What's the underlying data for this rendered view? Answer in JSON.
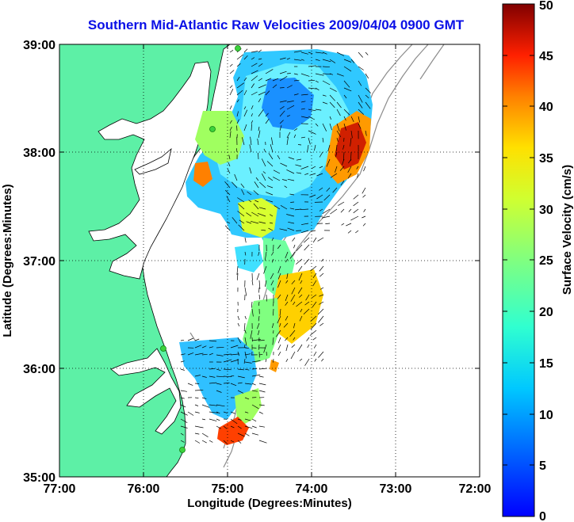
{
  "title": "Southern Mid-Atlantic Raw Velocities 2009/04/04 0900 GMT",
  "x_axis": {
    "label": "Longitude (Degrees:Minutes)",
    "ticks": [
      "77:00",
      "76:00",
      "75:00",
      "74:00",
      "73:00",
      "72:00"
    ]
  },
  "y_axis": {
    "label": "Latitude (Degrees:Minutes)",
    "ticks": [
      "39:00",
      "38:00",
      "37:00",
      "36:00",
      "35:00"
    ]
  },
  "colorbar": {
    "label": "Surface Velocity (cm/s)",
    "ticks": [
      "0",
      "5",
      "10",
      "15",
      "20",
      "25",
      "30",
      "35",
      "40",
      "45",
      "50"
    ],
    "range": [
      0,
      50
    ],
    "colormap": "jet"
  },
  "colors": {
    "land": "#5df0a6",
    "title": "#0a10e6",
    "grid": "#000000",
    "coastline": "#000000",
    "bathymetry": "#8c8c8c",
    "stations": "#3cd23c"
  },
  "map": {
    "lon_range": [
      -77,
      -72
    ],
    "lat_range": [
      35,
      39
    ],
    "gridlines": "dotted",
    "vector_color": "#000000"
  }
}
